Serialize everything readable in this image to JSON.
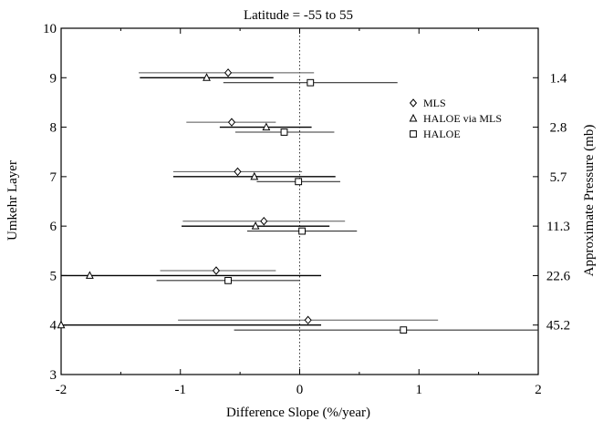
{
  "chart_data": {
    "type": "scatter",
    "title": "Latitude = -55 to 55",
    "xlabel": "Difference Slope (%/year)",
    "ylabel": "Umkehr Layer",
    "y2label": "Approximate Pressure (mb)",
    "xlim": [
      -2,
      2
    ],
    "ylim": [
      3,
      10
    ],
    "x_ticks": [
      "-2",
      "-1",
      "0",
      "1",
      "2"
    ],
    "y_ticks": [
      "3",
      "4",
      "5",
      "6",
      "7",
      "8",
      "9",
      "10"
    ],
    "y2_ticks": [
      {
        "layer": 9,
        "label": "1.4"
      },
      {
        "layer": 8,
        "label": "2.8"
      },
      {
        "layer": 7,
        "label": "5.7"
      },
      {
        "layer": 6,
        "label": "11.3"
      },
      {
        "layer": 5,
        "label": "22.6"
      },
      {
        "layer": 4,
        "label": "45.2"
      }
    ],
    "zero_line": true,
    "legend_position": "right",
    "series": [
      {
        "name": "MLS",
        "marker": "diamond",
        "points": [
          {
            "layer": 9,
            "y": 9.1,
            "x": -0.6,
            "lo": -1.35,
            "hi": 0.12
          },
          {
            "layer": 8,
            "y": 8.1,
            "x": -0.57,
            "lo": -0.95,
            "hi": -0.2
          },
          {
            "layer": 7,
            "y": 7.1,
            "x": -0.52,
            "lo": -1.06,
            "hi": 0.02
          },
          {
            "layer": 6,
            "y": 6.1,
            "x": -0.3,
            "lo": -0.98,
            "hi": 0.38
          },
          {
            "layer": 5,
            "y": 5.1,
            "x": -0.7,
            "lo": -1.17,
            "hi": -0.2
          },
          {
            "layer": 4,
            "y": 4.1,
            "x": 0.07,
            "lo": -1.02,
            "hi": 1.16
          }
        ]
      },
      {
        "name": "HALOE via MLS",
        "marker": "triangle",
        "points": [
          {
            "layer": 9,
            "y": 9.0,
            "x": -0.78,
            "lo": -1.34,
            "hi": -0.22
          },
          {
            "layer": 8,
            "y": 8.0,
            "x": -0.28,
            "lo": -0.67,
            "hi": 0.1
          },
          {
            "layer": 7,
            "y": 7.0,
            "x": -0.38,
            "lo": -1.06,
            "hi": 0.3
          },
          {
            "layer": 6,
            "y": 6.0,
            "x": -0.37,
            "lo": -0.99,
            "hi": 0.25
          },
          {
            "layer": 5,
            "y": 5.0,
            "x": -1.76,
            "lo": -2.0,
            "hi": 0.18
          },
          {
            "layer": 4,
            "y": 4.0,
            "x": -2.0,
            "lo": -2.0,
            "hi": 0.18
          }
        ]
      },
      {
        "name": "HALOE",
        "marker": "square",
        "points": [
          {
            "layer": 9,
            "y": 8.9,
            "x": 0.09,
            "lo": -0.64,
            "hi": 0.82
          },
          {
            "layer": 8,
            "y": 7.9,
            "x": -0.13,
            "lo": -0.54,
            "hi": 0.29
          },
          {
            "layer": 7,
            "y": 6.9,
            "x": -0.01,
            "lo": -0.36,
            "hi": 0.34
          },
          {
            "layer": 6,
            "y": 5.9,
            "x": 0.02,
            "lo": -0.44,
            "hi": 0.48
          },
          {
            "layer": 5,
            "y": 4.9,
            "x": -0.6,
            "lo": -1.2,
            "hi": 0.0
          },
          {
            "layer": 4,
            "y": 3.9,
            "x": 0.87,
            "lo": -0.55,
            "hi": 2.0
          }
        ]
      }
    ]
  }
}
